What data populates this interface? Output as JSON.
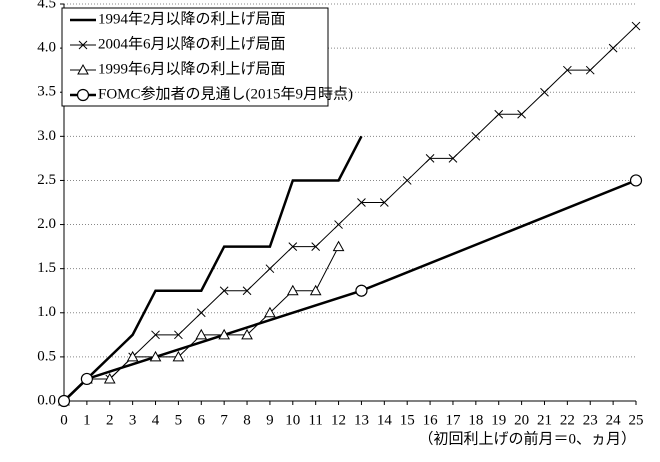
{
  "chart_data": {
    "type": "line",
    "xlim": [
      0,
      25
    ],
    "xticks": [
      0,
      1,
      2,
      3,
      4,
      5,
      6,
      7,
      8,
      9,
      10,
      11,
      12,
      13,
      14,
      15,
      16,
      17,
      18,
      19,
      20,
      21,
      22,
      23,
      24,
      25
    ],
    "ylim": [
      0,
      4.5
    ],
    "yticks": [
      {
        "value": 0,
        "label": "0.0"
      },
      {
        "value": 0.5,
        "label": "0.5"
      },
      {
        "value": 1,
        "label": "1.0"
      },
      {
        "value": 1.5,
        "label": "1.5"
      },
      {
        "value": 2,
        "label": "2.0"
      },
      {
        "value": 2.5,
        "label": "2.5"
      },
      {
        "value": 3,
        "label": "3.0"
      },
      {
        "value": 3.5,
        "label": "3.5"
      },
      {
        "value": 4,
        "label": "4.0"
      },
      {
        "value": 4.5,
        "label": "4.5"
      }
    ],
    "grid": true,
    "x_label": "（初回利上げの前月＝0、ヵ月）",
    "legend": "top-left",
    "series": [
      {
        "name": "1994年2月以降の利上げ局面",
        "color": "#000000",
        "marker": "none",
        "x": [
          0,
          1,
          2,
          3,
          4,
          5,
          6,
          7,
          8,
          9,
          10,
          11,
          12,
          13
        ],
        "values": [
          0,
          0.25,
          0.5,
          0.75,
          1.25,
          1.25,
          1.25,
          1.75,
          1.75,
          1.75,
          2.5,
          2.5,
          2.5,
          3.0
        ]
      },
      {
        "name": "2004年6月以降の利上げ局面",
        "color": "#000000",
        "marker": "x",
        "x": [
          0,
          1,
          2,
          3,
          4,
          5,
          6,
          7,
          8,
          9,
          10,
          11,
          12,
          13,
          14,
          15,
          16,
          17,
          18,
          19,
          20,
          21,
          22,
          23,
          24,
          25
        ],
        "values": [
          0,
          0.25,
          0.25,
          0.5,
          0.75,
          0.75,
          1.0,
          1.25,
          1.25,
          1.5,
          1.75,
          1.75,
          2.0,
          2.25,
          2.25,
          2.5,
          2.75,
          2.75,
          3.0,
          3.25,
          3.25,
          3.5,
          3.75,
          3.75,
          4.0,
          4.25
        ]
      },
      {
        "name": "1999年6月以降の利上げ局面",
        "color": "#000000",
        "marker": "triangle",
        "x": [
          0,
          1,
          2,
          3,
          4,
          5,
          6,
          7,
          8,
          9,
          10,
          11,
          12
        ],
        "values": [
          0,
          0.25,
          0.25,
          0.5,
          0.5,
          0.5,
          0.75,
          0.75,
          0.75,
          1.0,
          1.25,
          1.25,
          1.75
        ]
      },
      {
        "name": "FOMC参加者の見通し(2015年9月時点)",
        "color": "#000000",
        "marker": "circle",
        "x": [
          0,
          1,
          13,
          25
        ],
        "values": [
          0,
          0.25,
          1.25,
          2.5
        ]
      }
    ]
  }
}
